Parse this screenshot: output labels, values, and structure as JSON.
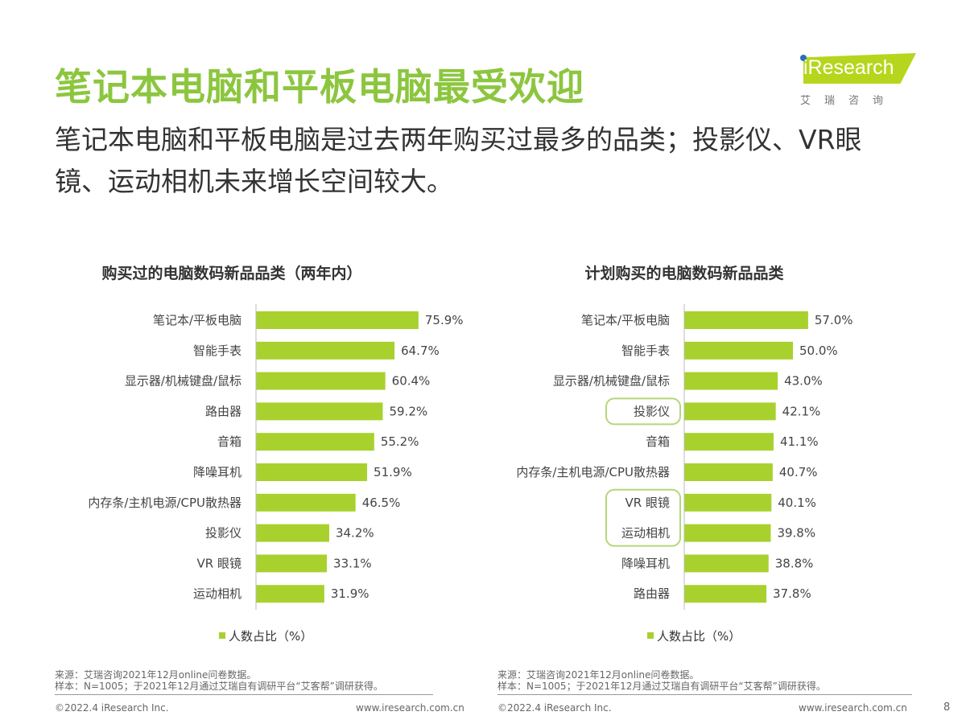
{
  "header": {
    "title": "笔记本电脑和平板电脑最受欢迎",
    "subtitle": "笔记本电脑和平板电脑是过去两年购买过最多的品类；投影仪、VR眼镜、运动相机未来增长空间较大。"
  },
  "logo": {
    "text": "iResearch",
    "cn": "艾瑞咨询",
    "color": "#b5d61c"
  },
  "chart_data": [
    {
      "type": "bar",
      "orientation": "horizontal",
      "title": "购买过的电脑数码新品品类（两年内）",
      "legend": "人数占比（%）",
      "color": "#a8d12e",
      "categories": [
        "笔记本/平板电脑",
        "智能手表",
        "显示器/机械键盘/鼠标",
        "路由器",
        "音箱",
        "降噪耳机",
        "内存条/主机电源/CPU散热器",
        "投影仪",
        "VR 眼镜",
        "运动相机"
      ],
      "values": [
        75.9,
        64.7,
        60.4,
        59.2,
        55.2,
        51.9,
        46.5,
        34.2,
        33.1,
        31.9
      ],
      "labels": [
        "75.9%",
        "64.7%",
        "60.4%",
        "59.2%",
        "55.2%",
        "51.9%",
        "46.5%",
        "34.2%",
        "33.1%",
        "31.9%"
      ]
    },
    {
      "type": "bar",
      "orientation": "horizontal",
      "title": "计划购买的电脑数码新品品类",
      "legend": "人数占比（%）",
      "color": "#a8d12e",
      "categories": [
        "笔记本/平板电脑",
        "智能手表",
        "显示器/机械键盘/鼠标",
        "投影仪",
        "音箱",
        "内存条/主机电源/CPU散热器",
        "VR 眼镜",
        "运动相机",
        "降噪耳机",
        "路由器"
      ],
      "values": [
        57.0,
        50.0,
        43.0,
        42.1,
        41.1,
        40.7,
        40.1,
        39.8,
        38.8,
        37.8
      ],
      "labels": [
        "57.0%",
        "50.0%",
        "43.0%",
        "42.1%",
        "41.1%",
        "40.7%",
        "40.1%",
        "39.8%",
        "38.8%",
        "37.8%"
      ],
      "highlighted": [
        [
          "投影仪"
        ],
        [
          "VR 眼镜",
          "运动相机"
        ]
      ]
    }
  ],
  "footer": {
    "source": "来源：艾瑞咨询2021年12月online问卷数据。",
    "sample": "样本：N=1005；于2021年12月通过艾瑞自有调研平台“艾客帮”调研获得。",
    "copyright": "©2022.4 iResearch Inc.",
    "url": "www.iresearch.com.cn",
    "page": "8"
  }
}
